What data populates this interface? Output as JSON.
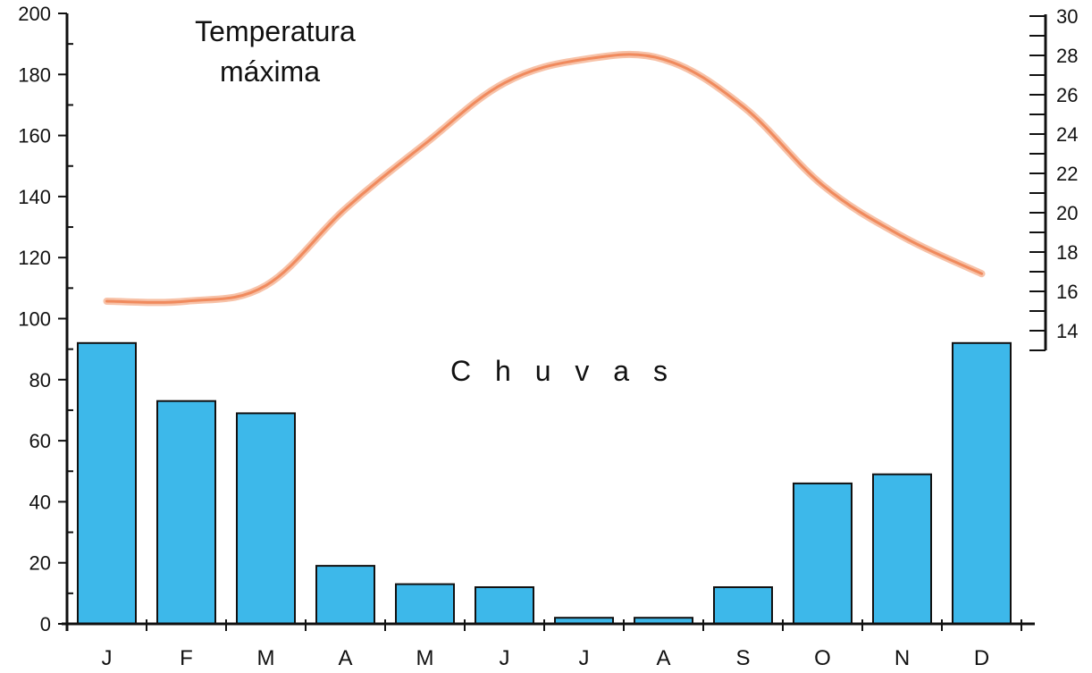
{
  "chart_data": {
    "type": "bar",
    "categories": [
      "J",
      "F",
      "M",
      "A",
      "M",
      "J",
      "J",
      "A",
      "S",
      "O",
      "N",
      "D"
    ],
    "bar_title": "C h u v a s",
    "line_title": [
      "Temperatura",
      "máxima"
    ],
    "series": [
      {
        "type": "bar",
        "axis": "left",
        "values": [
          92,
          73,
          69,
          19,
          13,
          12,
          2,
          2,
          12,
          46,
          49,
          92
        ]
      },
      {
        "type": "line",
        "axis": "right",
        "values": [
          15.5,
          15.5,
          16.3,
          20.2,
          23.5,
          26.6,
          27.8,
          27.8,
          25.4,
          21.4,
          18.8,
          16.9
        ]
      }
    ],
    "left_axis": {
      "min": 0,
      "max": 200,
      "major_step": 20,
      "minor_step": 10
    },
    "right_axis": {
      "min": 13,
      "max": 30,
      "major_step": 2,
      "minor_step": 1,
      "label_min": 14
    },
    "colors": {
      "bar_fill": "#3db8ea",
      "line_color": "#f08a5d",
      "line_glow": "#f7c2a8"
    }
  }
}
